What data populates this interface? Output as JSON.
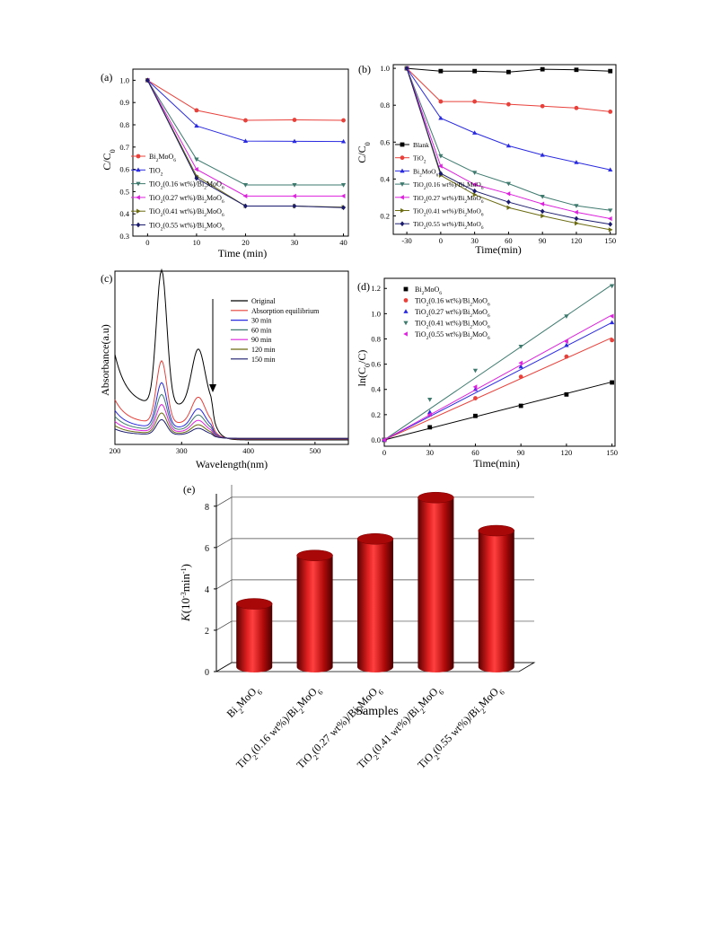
{
  "chart_data": [
    {
      "panel": "(a)",
      "type": "line",
      "xlabel": "Time (min)",
      "ylabel": "C/C0",
      "xlim": [
        -3,
        41
      ],
      "ylim": [
        0.3,
        1.05
      ],
      "xticks": [
        0,
        10,
        20,
        30,
        40
      ],
      "yticks": [
        0.3,
        0.4,
        0.5,
        0.6,
        0.7,
        0.8,
        0.9,
        1.0
      ],
      "legend_position": "left",
      "x": [
        0,
        10,
        20,
        30,
        40
      ],
      "series": [
        {
          "name": "Bi2MoO6",
          "color": "#e8403a",
          "marker": "circle",
          "values": [
            1.0,
            0.865,
            0.82,
            0.822,
            0.82
          ]
        },
        {
          "name": "TiO2",
          "color": "#2a2ae0",
          "marker": "triangle-up",
          "values": [
            1.0,
            0.795,
            0.727,
            0.726,
            0.725
          ]
        },
        {
          "name": "TiO2(0.16 wt%)/Bi2MoO6",
          "color": "#3e7a6e",
          "marker": "triangle-down",
          "values": [
            1.0,
            0.645,
            0.53,
            0.53,
            0.53
          ]
        },
        {
          "name": "TiO2(0.27 wt%)/Bi2MoO6",
          "color": "#dd22dd",
          "marker": "triangle-left",
          "values": [
            1.0,
            0.6,
            0.48,
            0.48,
            0.48
          ]
        },
        {
          "name": "TiO2(0.41 wt%)/Bi2MoO6",
          "color": "#6b6b12",
          "marker": "triangle-right",
          "values": [
            1.0,
            0.57,
            0.435,
            0.435,
            0.43
          ]
        },
        {
          "name": "TiO2(0.55 wt%)/Bi2MoO6",
          "color": "#1a1a6e",
          "marker": "diamond",
          "values": [
            1.0,
            0.56,
            0.435,
            0.435,
            0.428
          ]
        }
      ]
    },
    {
      "panel": "(b)",
      "type": "line",
      "xlabel": "Time(min)",
      "ylabel": "C/C0",
      "xlim": [
        -42,
        155
      ],
      "ylim": [
        0.1,
        1.02
      ],
      "xticks": [
        -30,
        0,
        30,
        60,
        90,
        120,
        150
      ],
      "yticks": [
        0.2,
        0.4,
        0.6,
        0.8,
        1.0
      ],
      "legend_position": "left",
      "x": [
        -30,
        0,
        30,
        60,
        90,
        120,
        150
      ],
      "series": [
        {
          "name": "Blank",
          "color": "#000000",
          "marker": "square",
          "values": [
            1.0,
            0.985,
            0.985,
            0.98,
            0.995,
            0.992,
            0.985
          ]
        },
        {
          "name": "TiO2",
          "color": "#e8403a",
          "marker": "circle",
          "values": [
            1.0,
            0.82,
            0.82,
            0.805,
            0.795,
            0.785,
            0.765
          ]
        },
        {
          "name": "Bi2MoO6",
          "color": "#2a2ae0",
          "marker": "triangle-up",
          "values": [
            1.0,
            0.73,
            0.65,
            0.58,
            0.53,
            0.49,
            0.45
          ]
        },
        {
          "name": "TiO2(0.16 wt%)/Bi2MoO6",
          "color": "#3e7a6e",
          "marker": "triangle-down",
          "values": [
            1.0,
            0.525,
            0.435,
            0.375,
            0.305,
            0.255,
            0.23
          ]
        },
        {
          "name": "TiO2(0.27 wt%)/Bi2MoO6",
          "color": "#dd22dd",
          "marker": "triangle-left",
          "values": [
            1.0,
            0.47,
            0.37,
            0.32,
            0.265,
            0.22,
            0.185
          ]
        },
        {
          "name": "TiO2(0.41 wt%)/Bi2MoO6",
          "color": "#6b6b12",
          "marker": "triangle-right",
          "values": [
            1.0,
            0.42,
            0.315,
            0.245,
            0.2,
            0.16,
            0.125
          ]
        },
        {
          "name": "TiO2(0.55 wt%)/Bi2MoO6",
          "color": "#1a1a6e",
          "marker": "diamond",
          "values": [
            1.0,
            0.43,
            0.335,
            0.275,
            0.225,
            0.185,
            0.155
          ]
        }
      ]
    },
    {
      "panel": "(c)",
      "type": "line",
      "xlabel": "Wavelength(nm)",
      "ylabel": "Absorbance(a.u)",
      "xlim": [
        200,
        550
      ],
      "ylim": [
        0,
        1
      ],
      "xticks": [
        200,
        300,
        400,
        500
      ],
      "legend_position": "top-right",
      "series": [
        {
          "name": "Original",
          "color": "#000000",
          "scale": 1.0
        },
        {
          "name": "Absorption equilibrium",
          "color": "#e8403a",
          "scale": 0.46
        },
        {
          "name": "30 min",
          "color": "#2a2ae0",
          "scale": 0.33
        },
        {
          "name": "60 min",
          "color": "#3e7a6e",
          "scale": 0.26
        },
        {
          "name": "90 min",
          "color": "#dd22dd",
          "scale": 0.2
        },
        {
          "name": "120 min",
          "color": "#6b6b12",
          "scale": 0.15
        },
        {
          "name": "150 min",
          "color": "#1a1a6e",
          "scale": 0.11
        }
      ]
    },
    {
      "panel": "(d)",
      "type": "scatter",
      "xlabel": "Time(min)",
      "ylabel": "ln(C0/C)",
      "xlim": [
        0,
        152
      ],
      "ylim": [
        -0.05,
        1.28
      ],
      "xticks": [
        0,
        30,
        60,
        90,
        120,
        150
      ],
      "yticks": [
        0.0,
        0.2,
        0.4,
        0.6,
        0.8,
        1.0,
        1.2
      ],
      "legend_position": "top-left",
      "x": [
        0,
        30,
        60,
        90,
        120,
        150
      ],
      "series": [
        {
          "name": "Bi2MoO6",
          "color": "#000000",
          "marker": "square",
          "values": [
            0.0,
            0.1,
            0.19,
            0.27,
            0.36,
            0.455
          ],
          "slope": 0.00306
        },
        {
          "name": "TiO2(0.16 wt%)/Bi2MoO6",
          "color": "#e8403a",
          "marker": "circle",
          "values": [
            0.0,
            0.2,
            0.33,
            0.5,
            0.66,
            0.79
          ],
          "slope": 0.0054
        },
        {
          "name": "TiO2(0.27 wt%)/Bi2MoO6",
          "color": "#2a2ae0",
          "marker": "triangle-up",
          "values": [
            0.0,
            0.22,
            0.4,
            0.58,
            0.75,
            0.93
          ],
          "slope": 0.0062
        },
        {
          "name": "TiO2(0.41 wt%)/Bi2MoO6",
          "color": "#3e7a6e",
          "marker": "triangle-down",
          "values": [
            0.0,
            0.32,
            0.55,
            0.74,
            0.98,
            1.22
          ],
          "slope": 0.0082
        },
        {
          "name": "TiO2(0.55 wt%)/Bi2MoO6",
          "color": "#dd22dd",
          "marker": "triangle-left",
          "values": [
            0.0,
            0.2,
            0.42,
            0.61,
            0.78,
            0.98
          ],
          "slope": 0.0066
        }
      ]
    },
    {
      "panel": "(e)",
      "type": "bar",
      "xlabel": "Samples",
      "ylabel": "K(10-3min-1)",
      "ylim": [
        0,
        8.6
      ],
      "yticks": [
        0,
        2,
        4,
        6,
        8
      ],
      "grid": true,
      "categories": [
        "Bi2MoO6",
        "TiO2(0.16 wt%)/Bi2MoO6",
        "TiO2(0.27 wt%)/Bi2MoO6",
        "TiO2(0.41 wt%)/Bi2MoO6",
        "TiO2(0.55 wt%)/Bi2MoO6"
      ],
      "values": [
        3.06,
        5.4,
        6.2,
        8.2,
        6.6
      ],
      "color": "#cc1111"
    }
  ],
  "labels": {
    "panel_a": "(a)",
    "panel_b": "(b)",
    "panel_c": "(c)",
    "panel_d": "(d)",
    "panel_e": "(e)",
    "a_xlabel": "Time (min)",
    "b_xlabel": "Time(min)",
    "c_xlabel": "Wavelength(nm)",
    "c_ylabel": "Absorbance(a.u)",
    "d_xlabel": "Time(min)",
    "e_xlabel": "Samples"
  }
}
